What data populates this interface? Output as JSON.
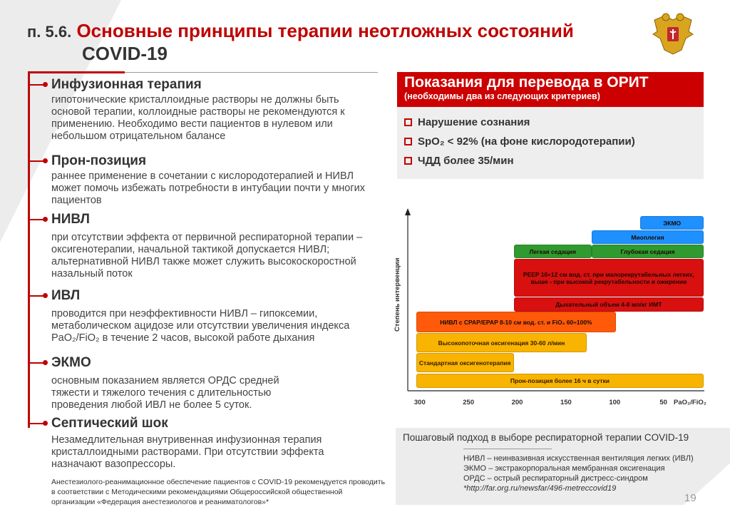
{
  "header": {
    "number": "п. 5.6.",
    "title_red": "Основные принципы терапии неотложных состояний",
    "title_line2": "COVID-19"
  },
  "sections": [
    {
      "title": "Инфузионная терапия",
      "text": "гипотонические кристаллоидные растворы не должны быть основой терапии, коллоидные растворы не рекомендуются к применению. Необходимо вести пациентов в нулевом или небольшом отрицательном балансе"
    },
    {
      "title": "Прон-позиция",
      "text": "раннее применение в сочетании с кислородотерапией и НИВЛ может помочь избежать потребности в интубации почти у многих пациентов"
    },
    {
      "title": "НИВЛ",
      "text": "при отсутствии эффекта от первичной респираторной терапии – оксигенотерапии, начальной тактикой допускается НИВЛ; альтернативной НИВЛ также может служить высокоскоростной назальный поток"
    },
    {
      "title": "ИВЛ",
      "text": "проводится при неэффективности НИВЛ – гипоксемии, метаболическом ацидозе или отсутствии увеличения индекса PaO₂/FiO₂ в течение 2 часов, высокой работе дыхания"
    },
    {
      "title": "ЭКМО",
      "text": "основным показанием является ОРДС средней тяжести и тяжелого течения с длительностью проведения любой ИВЛ не более 5 суток."
    },
    {
      "title": "Септический шок",
      "text": "Незамедлительная внутривенная инфузионная терапия кристаллоидными растворами. При отсутствии эффекта назначают вазопрессоры."
    }
  ],
  "footnote": "Анестезиолого-реанимационное обеспечение пациентов с COVID-19 рекомендуется проводить в соответствии с Методическими рекомендациями Общероссийской общественной организации «Федерация анестезиологов и реаниматологов»*",
  "icu": {
    "title": "Показания для перевода в ОРИТ",
    "subtitle": "(необходимы два из следующих критериев)",
    "criteria": [
      "Нарушение сознания",
      "SpO₂ < 92% (на фоне кислородотерапии)",
      "ЧДД более 35/мин"
    ]
  },
  "chart_data": {
    "type": "bar",
    "orientation": "horizontal-range",
    "ylabel": "Степень интервенции",
    "xlabel": "PaO₂/FiO₂",
    "xlim": [
      305,
      0
    ],
    "xticks": [
      300,
      250,
      200,
      150,
      100,
      50
    ],
    "bars": [
      {
        "label": "Прон-позиция более 16 ч в сутки",
        "from": 300,
        "to": 5,
        "color": "#f8b400"
      },
      {
        "label": "Стандартная оксигенотерапия",
        "from": 300,
        "to": 200,
        "color": "#f8b400"
      },
      {
        "label": "Высокопоточная оксигенация 30-60 л/мин",
        "from": 300,
        "to": 125,
        "color": "#f8b400"
      },
      {
        "label": "НИВЛ с CPAP/EPAP 8-10 см вод. ст. и FiO₂ 60÷100%",
        "from": 300,
        "to": 95,
        "color": "#ff5a0a"
      },
      {
        "label": "Дыхательный объем 4-8 мл/кг ИМТ",
        "from": 200,
        "to": 5,
        "color": "#d81010"
      },
      {
        "label": "PEEP 10÷12 см вод. ст. при малорекрутабельных легких, выше - при высокой рекрутабельности и ожирении",
        "from": 200,
        "to": 5,
        "color": "#d81010"
      },
      {
        "label": "Легкая седация",
        "from": 200,
        "to": 120,
        "color": "#2f9a2f"
      },
      {
        "label": "Глубокая седация",
        "from": 120,
        "to": 5,
        "color": "#2f9a2f"
      },
      {
        "label": "Миоплегия",
        "from": 120,
        "to": 5,
        "color": "#1e90ff"
      },
      {
        "label": "ЭКМО",
        "from": 70,
        "to": 5,
        "color": "#1e90ff"
      }
    ]
  },
  "caption": "Пошаговый подход в выборе респираторной терапии COVID-19",
  "abbreviations": [
    "НИВЛ – неинвазивная искусственная вентиляция легких (ИВЛ)",
    "ЭКМО – экстракорпоральная мембранная оксигенация",
    "ОРДС – острый респираторный дистресс-синдром",
    "*http://far.org.ru/newsfar/496-metreccovid19"
  ],
  "page_number": "19"
}
